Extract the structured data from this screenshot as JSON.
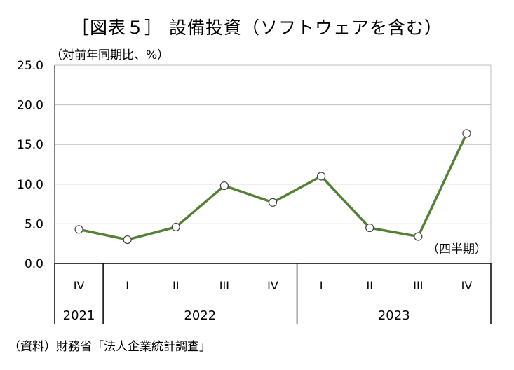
{
  "title": "［図表５］ 設備投資（ソフトウェアを含む）",
  "unit_label": "（対前年同期比、%）",
  "period_note": "（四半期）",
  "source": "（資料）財務省「法人企業統計調査」",
  "colors": {
    "line": "#538135",
    "marker_fill": "#ffffff",
    "marker_stroke": "#404040",
    "grid": "#bfbfbf",
    "axis": "#000000"
  },
  "chart_data": {
    "type": "line",
    "title": "［図表５］ 設備投資（ソフトウェアを含む）",
    "ylabel": "（対前年同期比、%）",
    "xlabel": "（四半期）",
    "ylim": [
      0,
      25
    ],
    "y_ticks": [
      "0.0",
      "5.0",
      "10.0",
      "15.0",
      "20.0",
      "25.0"
    ],
    "grid": true,
    "categories": [
      "IV",
      "I",
      "II",
      "III",
      "IV",
      "I",
      "II",
      "III",
      "IV"
    ],
    "years": [
      {
        "label": "2021",
        "span": 1
      },
      {
        "label": "2022",
        "span": 4
      },
      {
        "label": "2023",
        "span": 4
      }
    ],
    "series": [
      {
        "values": [
          4.3,
          3.0,
          4.6,
          9.8,
          7.7,
          11.0,
          4.5,
          3.4,
          16.4
        ]
      }
    ]
  }
}
